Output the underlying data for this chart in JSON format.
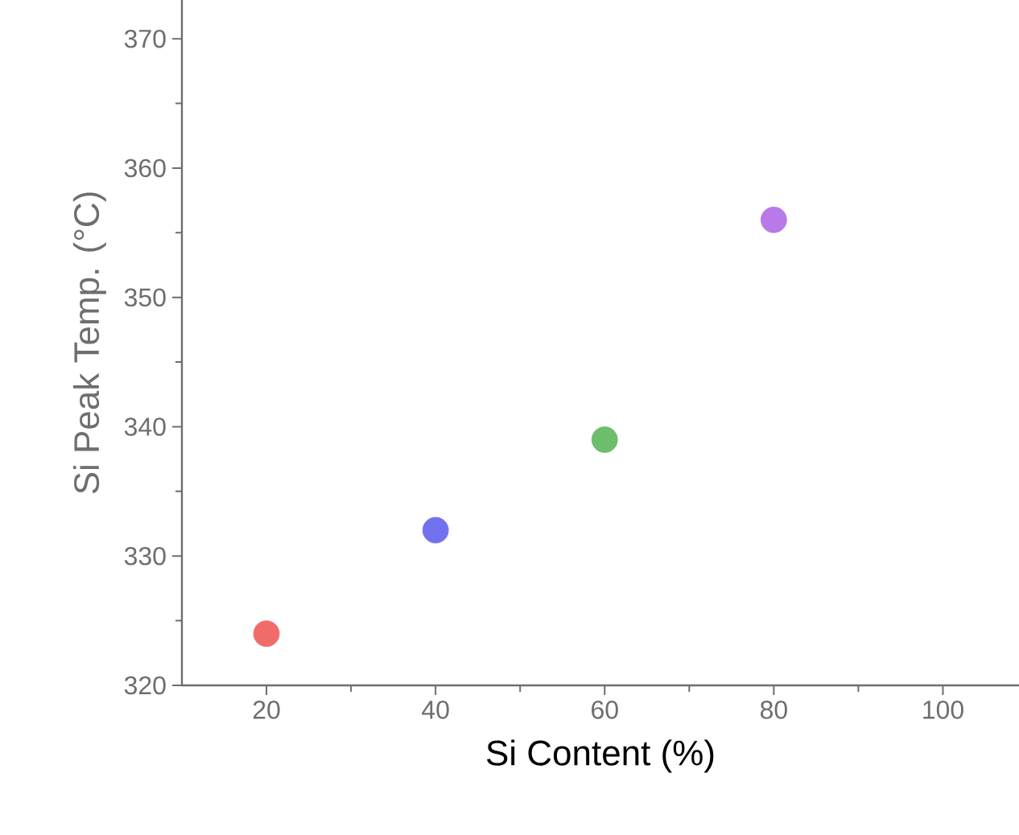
{
  "chart_data": {
    "type": "scatter",
    "xlabel": "Si Content (%)",
    "ylabel": "Si Peak Temp. (°C)",
    "x": [
      20,
      40,
      60,
      80
    ],
    "values": [
      324,
      332,
      339,
      356
    ],
    "colors": [
      "#f26b6b",
      "#7272f0",
      "#6cbd6c",
      "#b77ae8"
    ],
    "xlim": [
      10,
      109
    ],
    "ylim": [
      320,
      373
    ],
    "xticks": [
      20,
      40,
      60,
      80,
      100
    ],
    "yticks": [
      320,
      330,
      340,
      350,
      360,
      370
    ]
  }
}
